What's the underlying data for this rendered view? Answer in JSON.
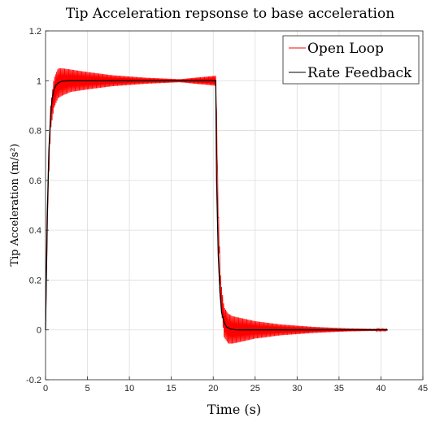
{
  "chart_data": {
    "type": "line",
    "title": "Tip Acceleration repsonse to base acceleration",
    "xlabel": "Time (s)",
    "ylabel": "Tip Acceleration (m/s²)",
    "xlim": [
      0,
      45
    ],
    "ylim": [
      -0.2,
      1.2
    ],
    "x_ticks": [
      "0",
      "5",
      "10",
      "15",
      "20",
      "25",
      "30",
      "35",
      "40",
      "45"
    ],
    "y_ticks": [
      "-0.2",
      "0",
      "0.2",
      "0.4",
      "0.6",
      "0.8",
      "1",
      "1.2"
    ],
    "grid": true,
    "legend_position": "top-right",
    "series": [
      {
        "name": "Open Loop",
        "color": "#ff0000",
        "x": [
          0,
          0.3,
          0.6,
          1.0,
          1.5,
          2,
          3,
          5,
          8,
          12,
          16,
          20.3,
          20.4,
          20.6,
          20.9,
          21.3,
          21.8,
          22.3,
          23,
          25,
          28,
          32,
          36,
          40.8
        ],
        "center": [
          0,
          0.55,
          0.85,
          0.95,
          0.99,
          0.995,
          1.0,
          1.0,
          1.0,
          1.0,
          1.0,
          1.0,
          0.85,
          0.45,
          0.15,
          0.03,
          0.005,
          0.0,
          0.0,
          0.0,
          0.0,
          0.0,
          0.0,
          0.0
        ],
        "amplitude": [
          0,
          0.02,
          0.05,
          0.06,
          0.06,
          0.055,
          0.045,
          0.035,
          0.022,
          0.012,
          0.006,
          0.02,
          0.03,
          0.04,
          0.05,
          0.06,
          0.06,
          0.055,
          0.05,
          0.035,
          0.022,
          0.012,
          0.006,
          0.003
        ]
      },
      {
        "name": "Rate Feedback",
        "color": "#000000",
        "x": [
          0,
          0.2,
          0.4,
          0.6,
          0.8,
          1.0,
          1.3,
          1.6,
          2.0,
          2.5,
          3,
          5,
          10,
          15,
          20.3,
          20.4,
          20.6,
          20.8,
          21.0,
          21.3,
          21.6,
          22.0,
          22.5,
          23,
          25,
          30,
          40.8
        ],
        "y": [
          0,
          0.45,
          0.72,
          0.86,
          0.93,
          0.965,
          0.985,
          0.993,
          0.998,
          1.0,
          1.0,
          1.0,
          1.0,
          1.0,
          1.0,
          0.6,
          0.3,
          0.15,
          0.07,
          0.03,
          0.012,
          0.004,
          0.001,
          0.0,
          0.0,
          0.0,
          0.0
        ]
      }
    ]
  }
}
